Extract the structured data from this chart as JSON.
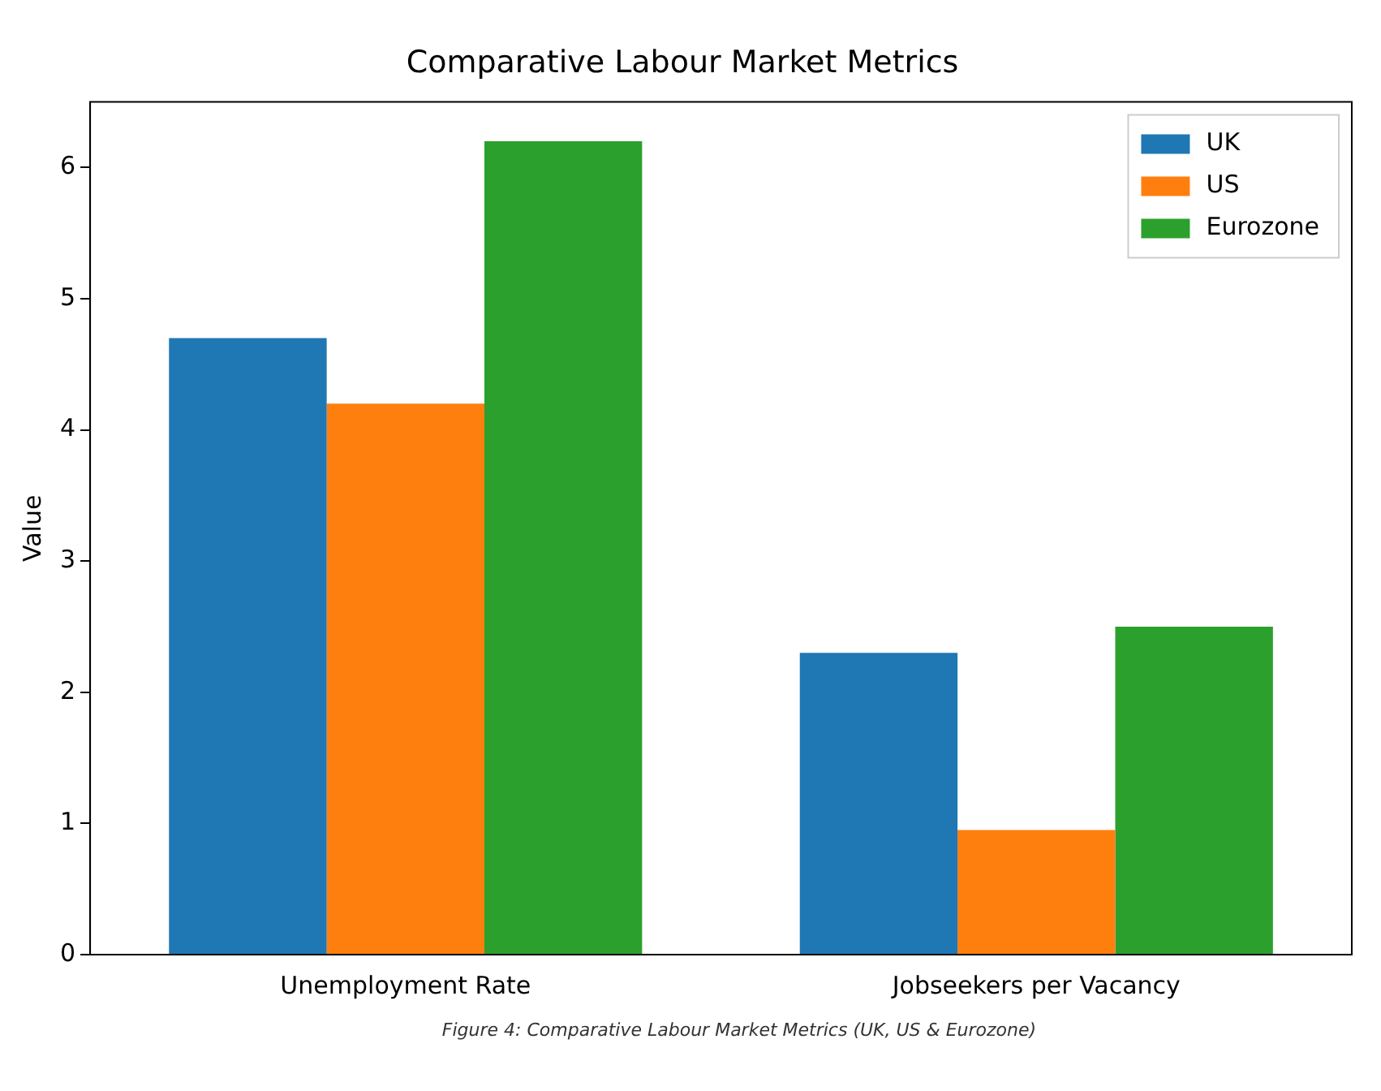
{
  "chart_data": {
    "type": "bar",
    "title": "Comparative Labour Market Metrics",
    "ylabel": "Value",
    "categories": [
      "Unemployment Rate",
      "Jobseekers per Vacancy"
    ],
    "series": [
      {
        "name": "UK",
        "color": "#1f77b4",
        "values": [
          4.7,
          2.3
        ]
      },
      {
        "name": "US",
        "color": "#ff7f0e",
        "values": [
          4.2,
          0.95
        ]
      },
      {
        "name": "Eurozone",
        "color": "#2ca02c",
        "values": [
          6.2,
          2.5
        ]
      }
    ],
    "ylim": [
      0,
      6.5
    ],
    "yticks": [
      0,
      1,
      2,
      3,
      4,
      5,
      6
    ],
    "grid": false,
    "legend": "top right",
    "annotations": [
      "Figure 4: Comparative Labour Market Metrics (UK, US & Eurozone)"
    ]
  }
}
